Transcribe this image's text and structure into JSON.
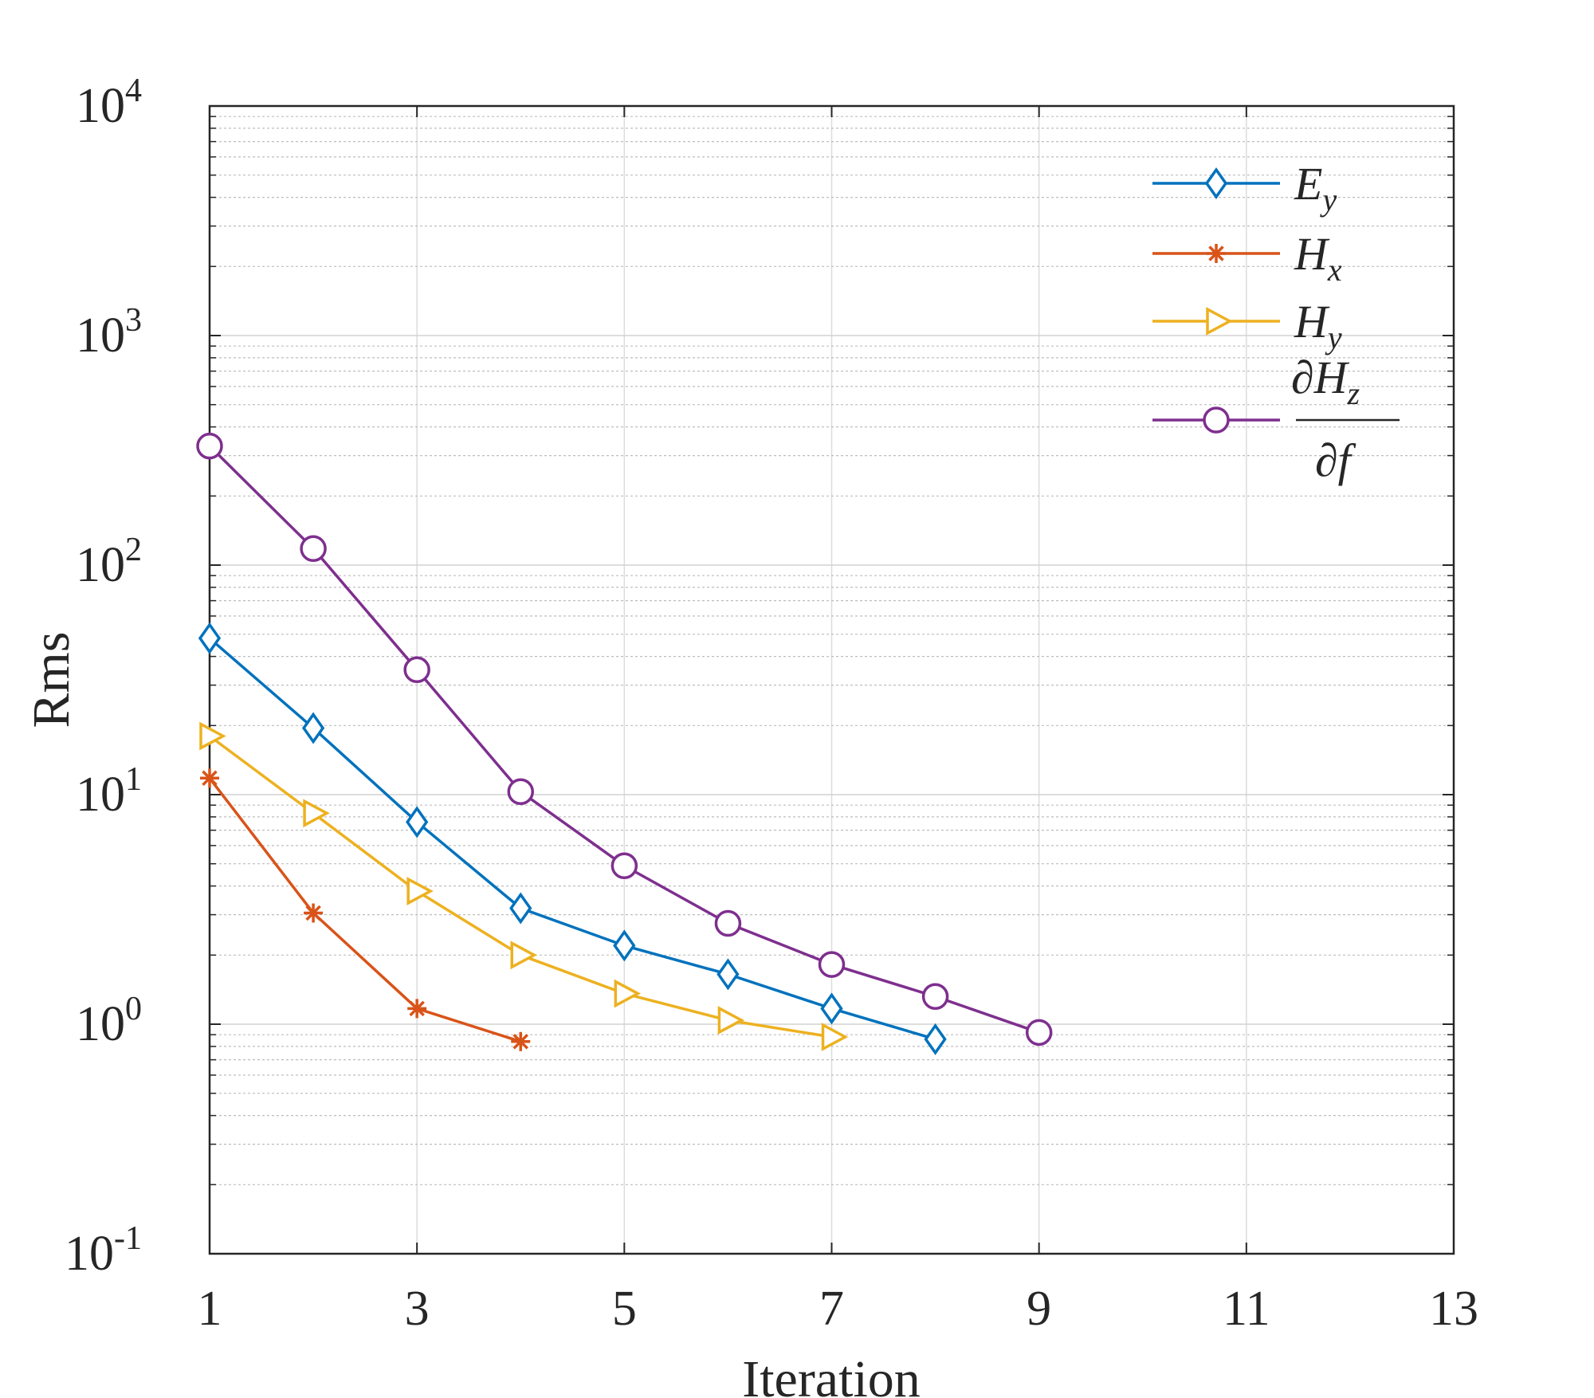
{
  "chart_data": {
    "type": "line",
    "title": "",
    "xlabel": "Iteration",
    "ylabel": "Rms",
    "xlim": [
      1,
      13
    ],
    "ylim": [
      0.1,
      10000
    ],
    "yscale": "log",
    "grid": true,
    "x_ticks": [
      "1",
      "3",
      "5",
      "7",
      "9",
      "11",
      "13"
    ],
    "y_ticks": [
      {
        "base": "10",
        "exp": "-1"
      },
      {
        "base": "10",
        "exp": "0"
      },
      {
        "base": "10",
        "exp": "1"
      },
      {
        "base": "10",
        "exp": "2"
      },
      {
        "base": "10",
        "exp": "3"
      },
      {
        "base": "10",
        "exp": "4"
      }
    ],
    "legend_position": "top-right",
    "series": [
      {
        "name": "Ey",
        "label_main": "E",
        "label_sub": "y",
        "color": "#0072BD",
        "marker": "diamond",
        "x": [
          1,
          2,
          3,
          4,
          5,
          6,
          7,
          8
        ],
        "y": [
          48,
          19.5,
          7.6,
          3.2,
          2.2,
          1.65,
          1.17,
          0.86
        ]
      },
      {
        "name": "Hx",
        "label_main": "H",
        "label_sub": "x",
        "color": "#D95319",
        "marker": "asterisk",
        "x": [
          1,
          2,
          3,
          4
        ],
        "y": [
          11.8,
          3.05,
          1.17,
          0.84
        ]
      },
      {
        "name": "Hy",
        "label_main": "H",
        "label_sub": "y",
        "color": "#EDB120",
        "marker": "triangle-right",
        "x": [
          1,
          2,
          3,
          4,
          5,
          6,
          7
        ],
        "y": [
          18,
          8.3,
          3.8,
          2.0,
          1.36,
          1.04,
          0.88
        ]
      },
      {
        "name": "dHz/df",
        "label_num_main": "∂H",
        "label_num_sub": "z",
        "label_den": "∂f",
        "color": "#7E2F8E",
        "marker": "circle",
        "x": [
          1,
          2,
          3,
          4,
          5,
          6,
          7,
          8,
          9
        ],
        "y": [
          330,
          118,
          35,
          10.3,
          4.9,
          2.75,
          1.82,
          1.32,
          0.92
        ]
      }
    ]
  }
}
